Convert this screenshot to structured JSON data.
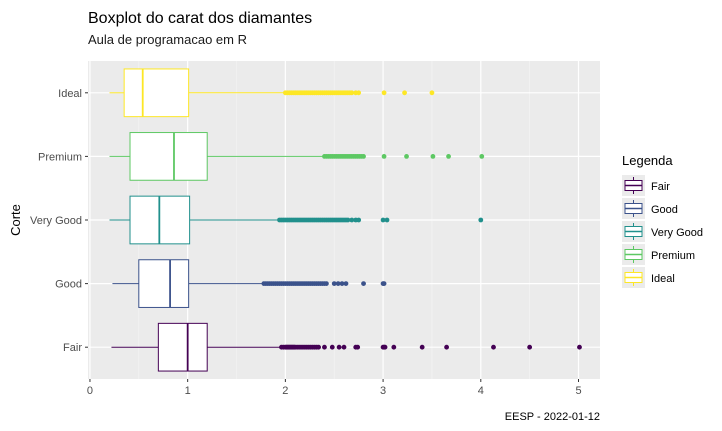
{
  "chart_data": {
    "type": "boxplot",
    "orientation": "horizontal",
    "title": "Boxplot do carat dos diamantes",
    "subtitle": "Aula de programacao em R",
    "xlabel": "",
    "ylabel": "Corte",
    "caption": "EESP - 2022-01-12",
    "xlim": [
      -0.02,
      5.22
    ],
    "xticks": [
      "0",
      "1",
      "2",
      "3",
      "4",
      "5"
    ],
    "xtick_values": [
      0,
      1,
      2,
      3,
      4,
      5
    ],
    "categories": [
      "Fair",
      "Good",
      "Very Good",
      "Premium",
      "Ideal"
    ],
    "grid": true,
    "legend": {
      "title": "Legenda",
      "placement": "right",
      "entries": [
        "Fair",
        "Good",
        "Very Good",
        "Premium",
        "Ideal"
      ]
    },
    "series": [
      {
        "name": "Fair",
        "color": "#440154",
        "whisker_low": 0.22,
        "q1": 0.7,
        "median": 1.0,
        "q3": 1.2,
        "whisker_high": 1.95,
        "outliers": [
          1.96,
          1.98,
          2.0,
          2.01,
          2.02,
          2.03,
          2.04,
          2.05,
          2.06,
          2.07,
          2.08,
          2.09,
          2.1,
          2.12,
          2.14,
          2.16,
          2.18,
          2.2,
          2.22,
          2.24,
          2.26,
          2.28,
          2.3,
          2.32,
          2.34,
          2.4,
          2.48,
          2.55,
          2.6,
          2.72,
          2.74,
          3.0,
          3.01,
          3.02,
          3.11,
          3.4,
          3.65,
          4.13,
          4.5,
          5.01
        ]
      },
      {
        "name": "Good",
        "color": "#3b528b",
        "whisker_low": 0.23,
        "q1": 0.5,
        "median": 0.82,
        "q3": 1.01,
        "whisker_high": 1.77,
        "outliers": [
          1.78,
          1.8,
          1.82,
          1.84,
          1.86,
          1.88,
          1.9,
          1.92,
          1.94,
          1.96,
          1.98,
          2.0,
          2.02,
          2.04,
          2.06,
          2.08,
          2.1,
          2.12,
          2.14,
          2.16,
          2.18,
          2.2,
          2.22,
          2.24,
          2.26,
          2.28,
          2.3,
          2.32,
          2.34,
          2.36,
          2.38,
          2.4,
          2.42,
          2.5,
          2.54,
          2.58,
          2.62,
          2.8,
          3.0,
          3.01
        ]
      },
      {
        "name": "Very Good",
        "color": "#21908c",
        "whisker_low": 0.2,
        "q1": 0.41,
        "median": 0.71,
        "q3": 1.02,
        "whisker_high": 1.93,
        "outliers": [
          1.94,
          1.96,
          1.98,
          2.0,
          2.02,
          2.04,
          2.06,
          2.08,
          2.1,
          2.12,
          2.14,
          2.16,
          2.18,
          2.2,
          2.22,
          2.24,
          2.26,
          2.28,
          2.3,
          2.32,
          2.34,
          2.36,
          2.38,
          2.4,
          2.42,
          2.44,
          2.46,
          2.48,
          2.5,
          2.52,
          2.54,
          2.56,
          2.58,
          2.6,
          2.62,
          2.64,
          2.68,
          2.72,
          2.75,
          3.0,
          3.04,
          4.0
        ]
      },
      {
        "name": "Premium",
        "color": "#5dc863",
        "whisker_low": 0.2,
        "q1": 0.41,
        "median": 0.86,
        "q3": 1.2,
        "whisker_high": 2.38,
        "outliers": [
          2.4,
          2.42,
          2.44,
          2.46,
          2.48,
          2.5,
          2.52,
          2.54,
          2.56,
          2.58,
          2.6,
          2.62,
          2.64,
          2.66,
          2.68,
          2.7,
          2.72,
          2.74,
          2.76,
          2.78,
          2.8,
          3.01,
          3.24,
          3.51,
          3.67,
          4.01
        ]
      },
      {
        "name": "Ideal",
        "color": "#fde725",
        "whisker_low": 0.2,
        "q1": 0.35,
        "median": 0.54,
        "q3": 1.01,
        "whisker_high": 1.98,
        "outliers": [
          2.0,
          2.02,
          2.04,
          2.06,
          2.08,
          2.1,
          2.12,
          2.14,
          2.16,
          2.18,
          2.2,
          2.22,
          2.24,
          2.26,
          2.28,
          2.3,
          2.32,
          2.34,
          2.36,
          2.38,
          2.4,
          2.42,
          2.44,
          2.46,
          2.48,
          2.5,
          2.52,
          2.54,
          2.56,
          2.58,
          2.6,
          2.62,
          2.64,
          2.66,
          2.68,
          2.72,
          2.75,
          3.01,
          3.22,
          3.5
        ]
      }
    ]
  }
}
